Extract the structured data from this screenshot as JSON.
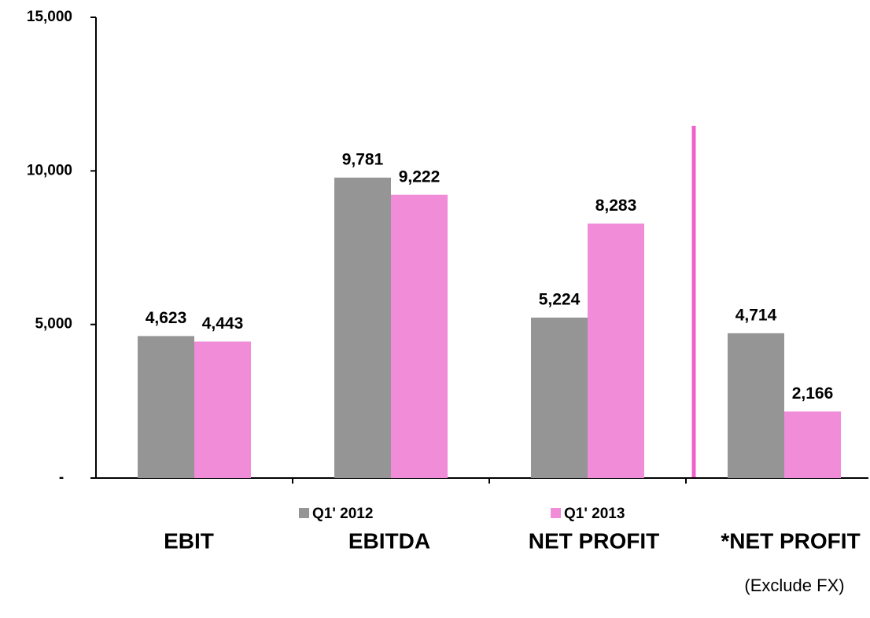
{
  "chart_data": {
    "type": "bar",
    "categories": [
      "EBIT",
      "EBITDA",
      "NET PROFIT",
      "*NET PROFIT"
    ],
    "series": [
      {
        "name": "Q1' 2012",
        "color": "#959595",
        "values": [
          4623,
          9781,
          5224,
          4714
        ],
        "value_labels": [
          "4,623",
          "9,781",
          "5,224",
          "4,714"
        ]
      },
      {
        "name": "Q1' 2013",
        "color": "#f08cd8",
        "values": [
          4443,
          9222,
          8283,
          2166
        ],
        "value_labels": [
          "4,443",
          "9,222",
          "8,283",
          "2,166"
        ]
      }
    ],
    "annotation": "(Exclude FX)",
    "ylim": [
      0,
      15000
    ],
    "yticks": [
      {
        "value": 0,
        "label": "-"
      },
      {
        "value": 5000,
        "label": "5,000"
      },
      {
        "value": 10000,
        "label": "10,000"
      },
      {
        "value": 15000,
        "label": "15,000"
      }
    ]
  }
}
